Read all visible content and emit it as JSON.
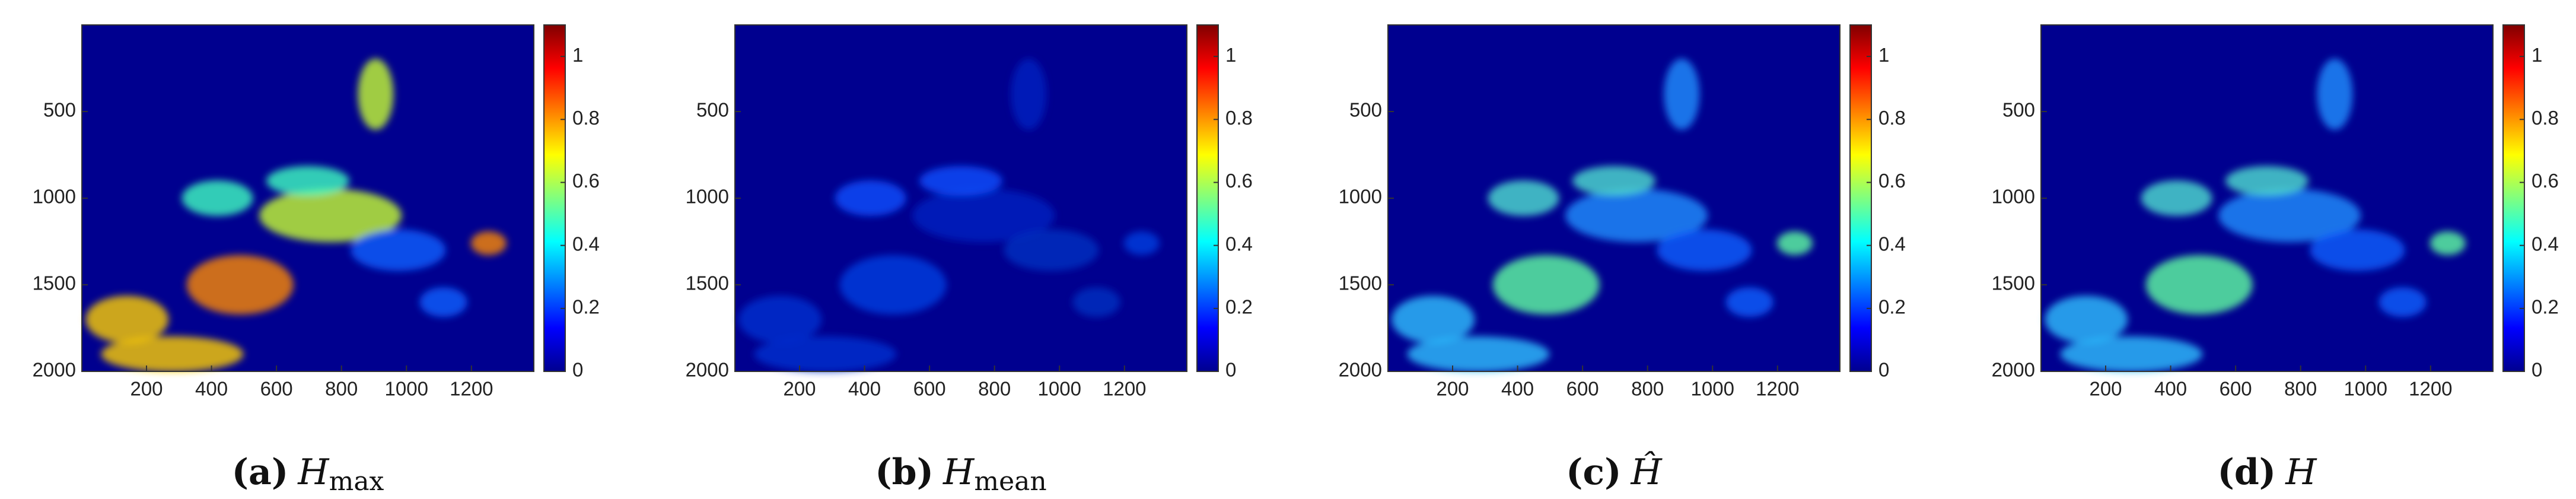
{
  "chart_data": [
    {
      "type": "heatmap",
      "caption": {
        "label": "(a)",
        "symbol": "H",
        "subscript": "max"
      },
      "xlim": [
        1,
        1392
      ],
      "xticks": [
        200,
        400,
        600,
        800,
        1000,
        1200
      ],
      "ylim": [
        2000,
        0
      ],
      "yticks": [
        500,
        1000,
        1500,
        2000
      ],
      "clim": [
        0,
        1.1
      ],
      "cticks": [
        0,
        0.2,
        0.4,
        0.6,
        0.8,
        1
      ],
      "colormap": "jet"
    },
    {
      "type": "heatmap",
      "caption": {
        "label": "(b)",
        "symbol": "H",
        "subscript": "mean"
      },
      "xlim": [
        1,
        1392
      ],
      "xticks": [
        200,
        400,
        600,
        800,
        1000,
        1200
      ],
      "ylim": [
        2000,
        0
      ],
      "yticks": [
        500,
        1000,
        1500,
        2000
      ],
      "clim": [
        0,
        1.1
      ],
      "cticks": [
        0,
        0.2,
        0.4,
        0.6,
        0.8,
        1
      ],
      "colormap": "jet"
    },
    {
      "type": "heatmap",
      "caption": {
        "label": "(c)",
        "symbol": "Ĥ"
      },
      "xlim": [
        1,
        1392
      ],
      "xticks": [
        200,
        400,
        600,
        800,
        1000,
        1200
      ],
      "ylim": [
        2000,
        0
      ],
      "yticks": [
        500,
        1000,
        1500,
        2000
      ],
      "clim": [
        0,
        1.1
      ],
      "cticks": [
        0,
        0.2,
        0.4,
        0.6,
        0.8,
        1
      ],
      "colormap": "jet"
    },
    {
      "type": "heatmap",
      "caption": {
        "label": "(d)",
        "symbol": "H"
      },
      "xlim": [
        1,
        1392
      ],
      "xticks": [
        200,
        400,
        600,
        800,
        1000,
        1200
      ],
      "ylim": [
        2000,
        0
      ],
      "yticks": [
        500,
        1000,
        1500,
        2000
      ],
      "clim": [
        0,
        1.1
      ],
      "cticks": [
        0,
        0.2,
        0.4,
        0.6,
        0.8,
        1
      ],
      "colormap": "jet"
    }
  ]
}
